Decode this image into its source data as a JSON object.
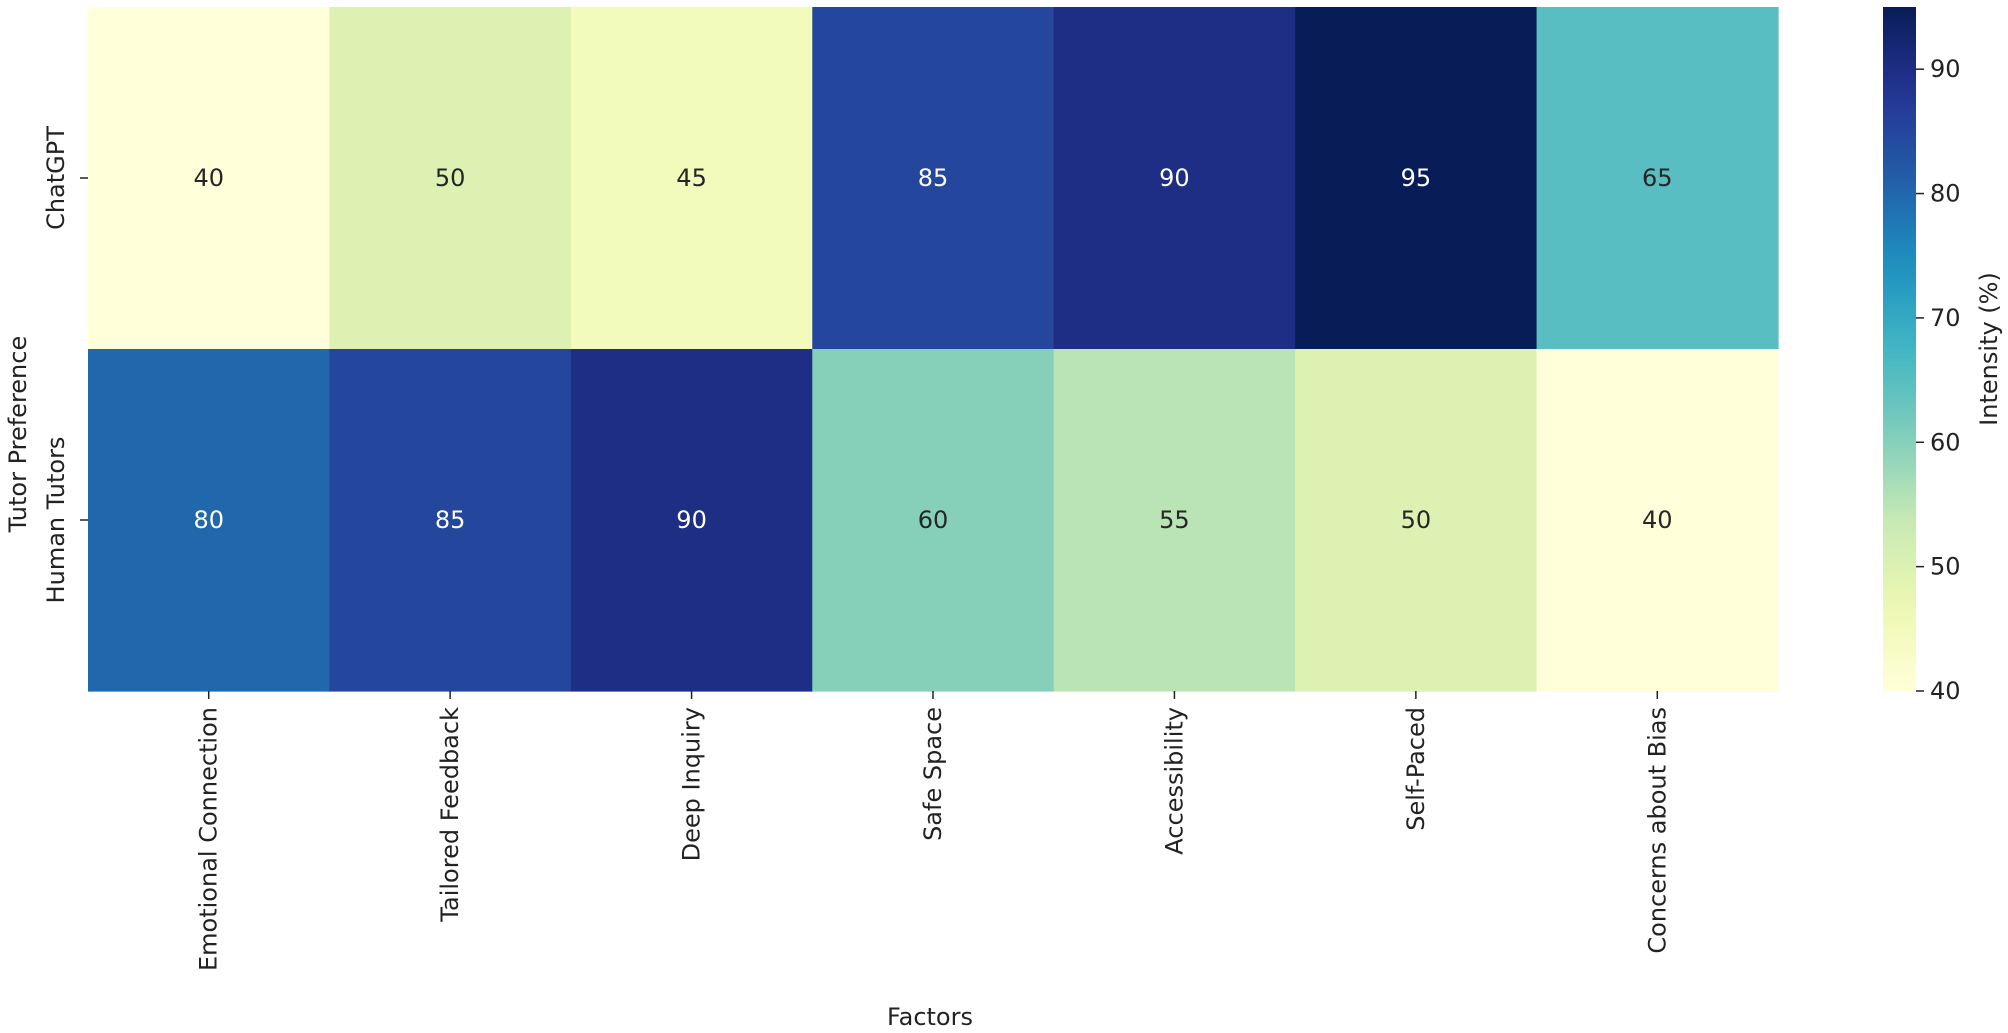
{
  "chart_data": {
    "type": "heatmap",
    "title": "",
    "xlabel": "Factors",
    "ylabel": "Tutor Preference",
    "x_categories": [
      "Emotional Connection",
      "Tailored Feedback",
      "Deep Inquiry",
      "Safe Space",
      "Accessibility",
      "Self-Paced",
      "Concerns about Bias"
    ],
    "y_categories": [
      "ChatGPT",
      "Human Tutors"
    ],
    "values": [
      [
        40,
        50,
        45,
        85,
        90,
        95,
        65
      ],
      [
        80,
        85,
        90,
        60,
        55,
        50,
        40
      ]
    ],
    "colormap": "YlGnBu",
    "colorbar": {
      "label": "Intensity (%)",
      "range": [
        40,
        95
      ],
      "ticks": [
        40,
        50,
        60,
        70,
        80,
        90
      ]
    },
    "annotations": true
  }
}
